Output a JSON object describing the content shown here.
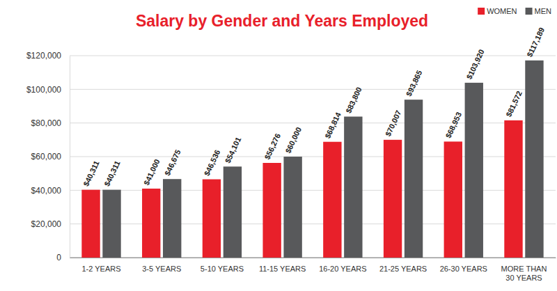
{
  "chart_data": {
    "type": "bar",
    "title": "Salary by Gender and Years Employed",
    "categories": [
      "1-2 YEARS",
      "3-5 YEARS",
      "5-10 YEARS",
      "11-15 YEARS",
      "16-20 YEARS",
      "21-25 YEARS",
      "26-30 YEARS",
      "MORE THAN 30 YEARS"
    ],
    "series": [
      {
        "name": "WOMEN",
        "color": "#e8202a",
        "values": [
          40311,
          41000,
          46536,
          56276,
          68814,
          70007,
          68953,
          81572
        ],
        "value_labels": [
          "$40,311",
          "$41,000",
          "$46,536",
          "$56,276",
          "$68,814",
          "$70,007",
          "$68,953",
          "$81,572"
        ]
      },
      {
        "name": "MEN",
        "color": "#58595b",
        "values": [
          40311,
          46675,
          54101,
          60000,
          83800,
          93865,
          103920,
          117189
        ],
        "value_labels": [
          "$40,311",
          "$46,675",
          "$54,101",
          "$60,000",
          "$83,800",
          "$93,865",
          "$103,920",
          "$117,189"
        ]
      }
    ],
    "ylim": [
      0,
      120000
    ],
    "yticks": [
      0,
      {
        "value": 20000,
        "label": "$20,000"
      },
      {
        "value": 40000,
        "label": "$40,000"
      },
      {
        "value": 60000,
        "label": "$60,000"
      },
      {
        "value": 80000,
        "label": "$80,000"
      },
      {
        "value": 100000,
        "label": "$100,000"
      },
      {
        "value": 120000,
        "label": "$120,000"
      }
    ],
    "grid": true,
    "legend": "top-right",
    "data_labels": true
  }
}
